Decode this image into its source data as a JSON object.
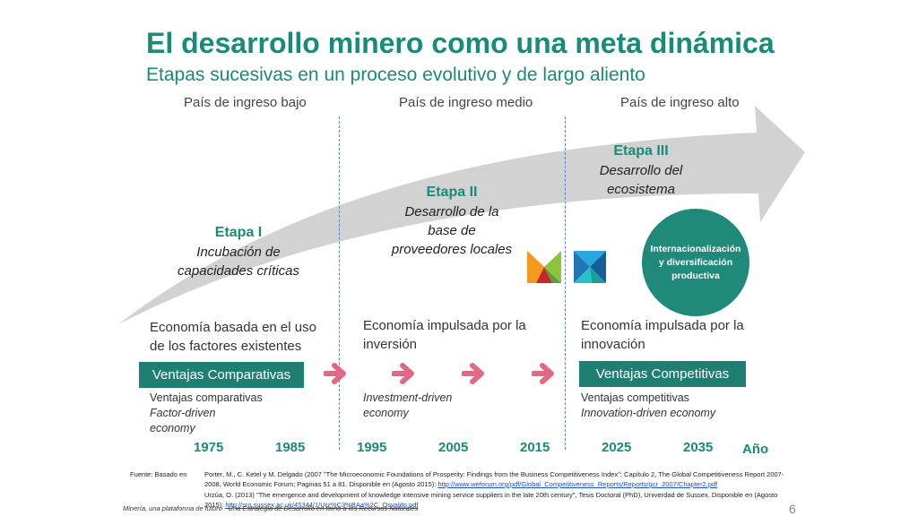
{
  "title": "El desarrollo minero como una meta dinámica",
  "subtitle": "Etapas sucesivas en un proceso evolutivo y de largo aliento",
  "columns": [
    "País de ingreso bajo",
    "País de ingreso medio",
    "País de ingreso alto"
  ],
  "stages": [
    {
      "title": "Etapa I",
      "desc": [
        "Incubación de",
        "capacidades críticas"
      ]
    },
    {
      "title": "Etapa II",
      "desc": [
        "Desarrollo de la",
        "base de",
        "proveedores locales"
      ]
    },
    {
      "title": "Etapa III",
      "desc": [
        "Desarrollo del",
        "ecosistema"
      ]
    }
  ],
  "circle": {
    "lines": [
      "Internacionalización",
      "y diversificación",
      "productiva"
    ]
  },
  "economies": [
    {
      "lines": [
        "Economía basada en el uso",
        "de los factores  existentes"
      ]
    },
    {
      "lines": [
        "Economía impulsada por la",
        "inversión"
      ]
    },
    {
      "lines": [
        "Economía impulsada por la",
        "innovación"
      ]
    }
  ],
  "advantages": {
    "left": "Ventajas Comparativas",
    "right": "Ventajas Competitivas"
  },
  "notes": {
    "left": {
      "normal": "Ventajas comparativas",
      "italic": [
        "Factor-driven",
        "economy"
      ]
    },
    "middle": {
      "italic": [
        "Investment-driven",
        "economy"
      ]
    },
    "right": {
      "normal": "Ventajas competitivas",
      "italic": [
        "Innovation-driven economy"
      ]
    }
  },
  "years": [
    "1975",
    "1985",
    "1995",
    "2005",
    "2015",
    "2025",
    "2035"
  ],
  "year_axis_label": "Año",
  "sources": {
    "label": "Fuente: Basado en",
    "ref1_text": "Porter, M., C. Ketel y M. Delgado (2007 \"The Microeconomic Foundations of Prosperity: Findings from the Business Competitiveness Index\"; Capítulo 2, The Global Competitiveness Report 2007-2008, World Economic Forum; Paginas  51 a 81. Disponible en (Agosto 2015): ",
    "ref1_link": "http://www.weforum.org/pdf/Global_Competitiveness_Reports/Reports/gcr_2007/Chapter2.pdf",
    "ref2_text": "Urzúa, O. (2013) \"The emergence and development of knowledge intensive mining service suppliers in the late 20th century\", Tesis Doctoral (PhD), Univerdad de Sussex. Disponible en (Agosto 2015): ",
    "ref2_link": "http://sro.sussex.ac.uk/45344/1/Urz%C3%BAa%2C_Osvaldo.pdf"
  },
  "footer": "Minería, una plataforma de futuro - Una Estrategia de Desarrollo en torno a los Recursos Naturales",
  "page_number": "6",
  "colors": {
    "teal": "#1a8a7a",
    "box": "#1f7f73",
    "arrow": "#d0d0d0",
    "chevron": "#e06a86",
    "divider": "#5b84c6"
  },
  "icons": [
    "big-curved-arrow",
    "chevron-right-icon",
    "minería-logo-color-icon",
    "minería-logo-blue-icon"
  ]
}
